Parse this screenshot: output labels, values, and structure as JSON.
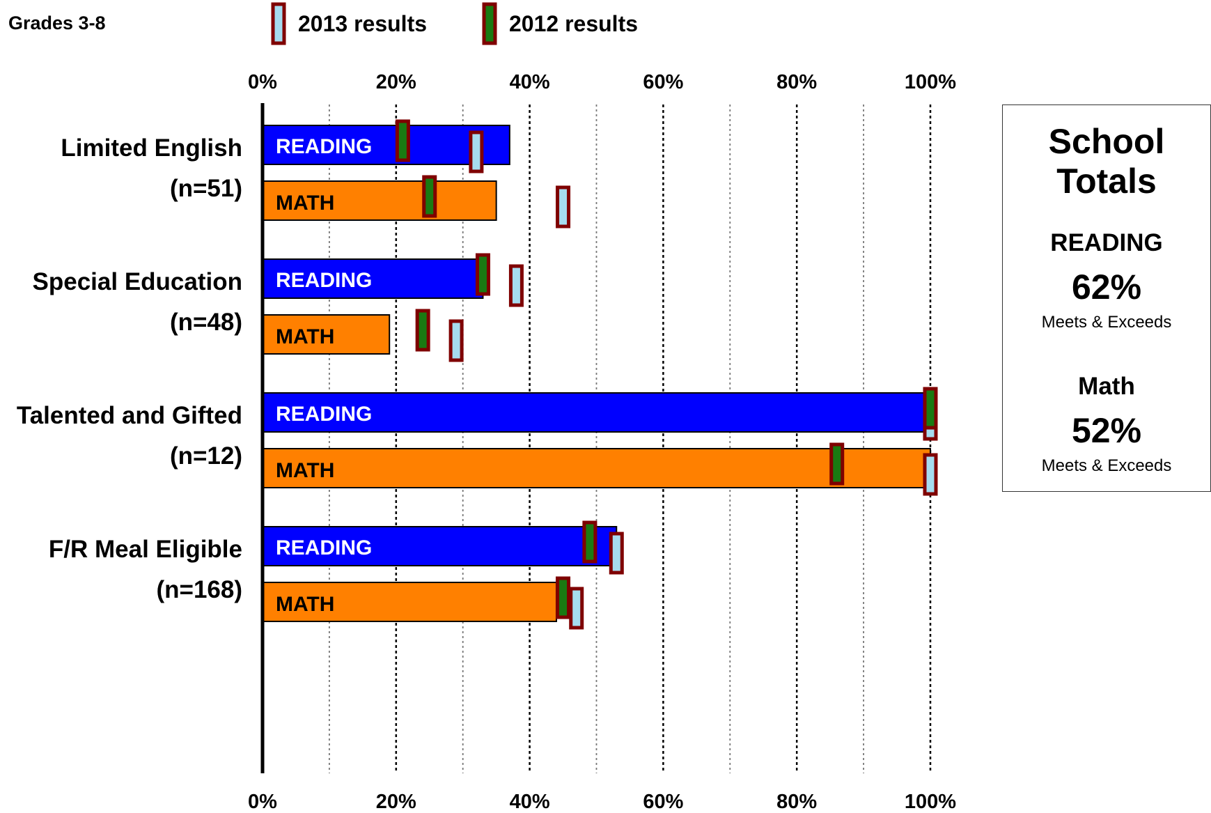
{
  "header": {
    "grades_label": "Grades 3-8"
  },
  "legend": [
    {
      "label": "2013 results",
      "fill": "#a6dcef",
      "border": "#7f0000"
    },
    {
      "label": "2012 results",
      "fill": "#1a7a12",
      "border": "#7f0000"
    }
  ],
  "colors": {
    "reading": "#0000ff",
    "math": "#ff8000",
    "marker_border": "#7f0000"
  },
  "school_totals": {
    "title_line1": "School",
    "title_line2": "Totals",
    "reading_label": "READING",
    "reading_value": "62%",
    "reading_caption": "Meets & Exceeds",
    "math_label": "Math",
    "math_value": "52%",
    "math_caption": "Meets & Exceeds"
  },
  "chart_data": {
    "type": "bar",
    "orientation": "horizontal",
    "xlim": [
      0,
      100
    ],
    "x_ticks": [
      "0%",
      "20%",
      "40%",
      "60%",
      "80%",
      "100%"
    ],
    "grid": true,
    "bar_labels": {
      "reading": "READING",
      "math": "MATH"
    },
    "groups": [
      {
        "name": "Limited English",
        "n": "(n=51)",
        "reading": {
          "value": 37,
          "y2013": 32,
          "y2012": 21
        },
        "math": {
          "value": 35,
          "y2013": 45,
          "y2012": 25
        }
      },
      {
        "name": "Special Education",
        "n": "(n=48)",
        "reading": {
          "value": 33,
          "y2013": 38,
          "y2012": 33
        },
        "math": {
          "value": 19,
          "y2013": 29,
          "y2012": 24
        }
      },
      {
        "name": "Talented and Gifted",
        "n": "(n=12)",
        "reading": {
          "value": 100,
          "y2013": 100,
          "y2012": 100
        },
        "math": {
          "value": 100,
          "y2013": 100,
          "y2012": 86
        }
      },
      {
        "name": "F/R Meal Eligible",
        "n": "(n=168)",
        "reading": {
          "value": 53,
          "y2013": 53,
          "y2012": 49
        },
        "math": {
          "value": 44,
          "y2013": 47,
          "y2012": 45
        }
      }
    ]
  }
}
